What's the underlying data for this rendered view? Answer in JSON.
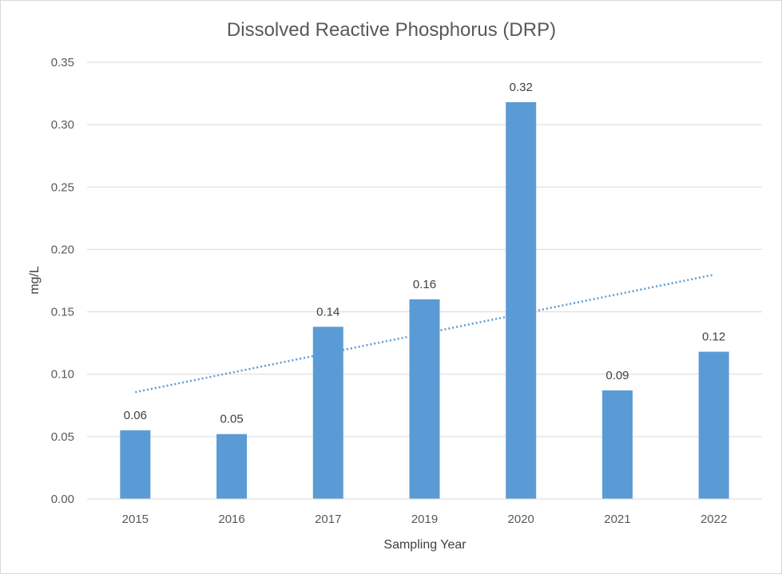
{
  "chart_data": {
    "type": "bar",
    "title": "Dissolved Reactive Phosphorus (DRP)",
    "xlabel": "Sampling Year",
    "ylabel": "mg/L",
    "categories": [
      "2015",
      "2016",
      "2017",
      "2019",
      "2020",
      "2021",
      "2022"
    ],
    "values": [
      0.055,
      0.052,
      0.138,
      0.16,
      0.318,
      0.087,
      0.118
    ],
    "data_labels": [
      "0.06",
      "0.05",
      "0.14",
      "0.16",
      "0.32",
      "0.09",
      "0.12"
    ],
    "ylim": [
      0,
      0.35
    ],
    "yticks": [
      "0.00",
      "0.05",
      "0.10",
      "0.15",
      "0.20",
      "0.25",
      "0.30",
      "0.35"
    ],
    "trendline": {
      "type": "linear",
      "style": "dotted",
      "start": 0.0856,
      "end": 0.1797
    },
    "grid": true,
    "legend": "none",
    "colors": {
      "bar": "#5b9bd5",
      "trendline": "#5b9bd5",
      "grid": "#d9d9d9",
      "text": "#595959"
    }
  }
}
